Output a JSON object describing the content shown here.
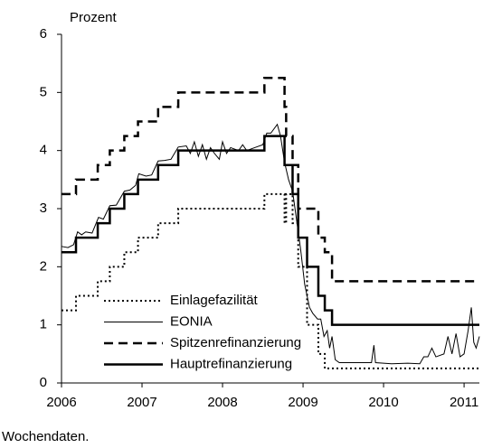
{
  "chart_data": {
    "type": "line",
    "y_label": "Prozent",
    "note": "Wochendaten.",
    "xlim": [
      2006,
      2011.19
    ],
    "xticks": [
      2006,
      2007,
      2008,
      2009,
      2010,
      2011
    ],
    "ylim": [
      0,
      6
    ],
    "yticks": [
      0,
      1,
      2,
      3,
      4,
      5,
      6
    ],
    "grid": false,
    "legend": "lower left",
    "series": [
      {
        "name": "Einlagefazilität",
        "color": "#000000",
        "style": "dotted",
        "step": true,
        "x": [
          2006,
          2006.18,
          2006.45,
          2006.6,
          2006.78,
          2006.95,
          2007.2,
          2007.45,
          2008.52,
          2008.77,
          2008.79,
          2008.87,
          2008.94,
          2009.05,
          2009.19,
          2009.27,
          2011.19
        ],
        "values": [
          1.25,
          1.5,
          1.75,
          2.0,
          2.25,
          2.5,
          2.75,
          3.0,
          3.25,
          2.75,
          3.25,
          2.75,
          2.0,
          1.0,
          0.5,
          0.25,
          0.25
        ]
      },
      {
        "name": "EONIA",
        "color": "#000000",
        "style": "thin",
        "step": false,
        "x": [
          2006,
          2006.08,
          2006.15,
          2006.2,
          2006.25,
          2006.3,
          2006.38,
          2006.46,
          2006.52,
          2006.6,
          2006.68,
          2006.78,
          2006.85,
          2006.92,
          2006.96,
          2007.05,
          2007.12,
          2007.2,
          2007.28,
          2007.36,
          2007.45,
          2007.55,
          2007.6,
          2007.65,
          2007.7,
          2007.75,
          2007.8,
          2007.85,
          2007.9,
          2007.96,
          2008.0,
          2008.05,
          2008.1,
          2008.2,
          2008.25,
          2008.3,
          2008.4,
          2008.5,
          2008.55,
          2008.6,
          2008.68,
          2008.72,
          2008.77,
          2008.82,
          2008.87,
          2008.92,
          2008.97,
          2009.02,
          2009.08,
          2009.12,
          2009.18,
          2009.22,
          2009.26,
          2009.3,
          2009.33,
          2009.36,
          2009.4,
          2009.45,
          2009.55,
          2009.7,
          2009.85,
          2009.88,
          2009.9,
          2010.1,
          2010.3,
          2010.45,
          2010.5,
          2010.55,
          2010.6,
          2010.65,
          2010.75,
          2010.8,
          2010.85,
          2010.9,
          2010.95,
          2011.0,
          2011.05,
          2011.09,
          2011.12,
          2011.15,
          2011.19
        ],
        "values": [
          2.35,
          2.33,
          2.38,
          2.6,
          2.55,
          2.6,
          2.58,
          2.85,
          2.82,
          3.05,
          3.06,
          3.3,
          3.32,
          3.4,
          3.6,
          3.56,
          3.58,
          3.82,
          3.83,
          3.85,
          4.06,
          4.08,
          3.95,
          4.15,
          3.9,
          4.1,
          3.85,
          4.05,
          3.95,
          3.85,
          4.15,
          3.95,
          4.05,
          4.0,
          4.1,
          4.0,
          4.05,
          4.1,
          4.3,
          4.3,
          4.45,
          4.25,
          3.8,
          3.5,
          3.3,
          2.8,
          2.3,
          1.7,
          1.3,
          1.2,
          1.1,
          1.1,
          0.8,
          0.9,
          0.6,
          0.8,
          0.4,
          0.35,
          0.35,
          0.35,
          0.35,
          0.65,
          0.35,
          0.33,
          0.34,
          0.33,
          0.45,
          0.45,
          0.6,
          0.45,
          0.5,
          0.8,
          0.5,
          0.85,
          0.45,
          0.5,
          0.9,
          1.3,
          0.7,
          0.6,
          0.8
        ]
      },
      {
        "name": "Spitzenrefinanzierung",
        "color": "#000000",
        "style": "dashed",
        "step": true,
        "x": [
          2006,
          2006.18,
          2006.45,
          2006.6,
          2006.78,
          2006.95,
          2007.2,
          2007.45,
          2008.52,
          2008.77,
          2008.79,
          2008.87,
          2008.94,
          2009.19,
          2009.27,
          2009.36,
          2011.19
        ],
        "values": [
          3.25,
          3.5,
          3.75,
          4.0,
          4.25,
          4.5,
          4.75,
          5.0,
          5.25,
          4.75,
          4.25,
          3.75,
          3.0,
          2.5,
          2.25,
          1.75,
          1.75
        ]
      },
      {
        "name": "Hauptrefinanzierung",
        "color": "#000000",
        "style": "thick",
        "step": true,
        "x": [
          2006,
          2006.18,
          2006.45,
          2006.6,
          2006.78,
          2006.95,
          2007.2,
          2007.45,
          2008.52,
          2008.77,
          2008.87,
          2008.94,
          2009.05,
          2009.19,
          2009.27,
          2009.36,
          2011.19
        ],
        "values": [
          2.25,
          2.5,
          2.75,
          3.0,
          3.25,
          3.5,
          3.75,
          4.0,
          4.25,
          3.75,
          3.25,
          2.5,
          2.0,
          1.5,
          1.25,
          1.0,
          1.0
        ]
      }
    ]
  }
}
